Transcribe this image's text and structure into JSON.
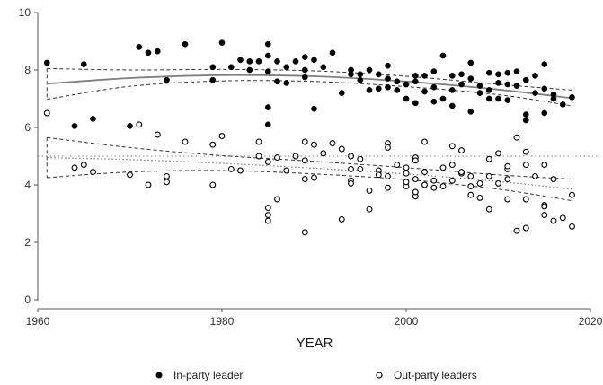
{
  "chart_data": {
    "type": "scatter",
    "title": "",
    "xlabel": "YEAR",
    "ylabel": "",
    "xlim": [
      1960,
      2020
    ],
    "ylim": [
      0,
      10
    ],
    "xticks": [
      1960,
      1980,
      2000,
      2020
    ],
    "yticks": [
      0,
      2,
      4,
      6,
      8,
      10
    ],
    "grid": false,
    "legend_position": "bottom",
    "reference_line_y": 5,
    "colors": {
      "in_party": "#000000",
      "out_party": "#000000",
      "fit": "#808080",
      "ci": "#333333",
      "reference": "#9a9a9a"
    },
    "series": [
      {
        "name": "In-party leader",
        "marker": "filled-circle",
        "points": [
          [
            1961,
            8.25
          ],
          [
            1964,
            6.05
          ],
          [
            1965,
            8.2
          ],
          [
            1966,
            6.3
          ],
          [
            1970,
            6.05
          ],
          [
            1971,
            8.8
          ],
          [
            1972,
            8.6
          ],
          [
            1973,
            8.65
          ],
          [
            1974,
            7.65
          ],
          [
            1976,
            8.9
          ],
          [
            1979,
            8.1
          ],
          [
            1979,
            7.65
          ],
          [
            1980,
            8.95
          ],
          [
            1981,
            8.1
          ],
          [
            1982,
            8.35
          ],
          [
            1983,
            8.3
          ],
          [
            1983,
            8.0
          ],
          [
            1984,
            8.3
          ],
          [
            1985,
            8.9
          ],
          [
            1985,
            8.5
          ],
          [
            1985,
            7.95
          ],
          [
            1985,
            6.7
          ],
          [
            1985,
            6.1
          ],
          [
            1986,
            8.3
          ],
          [
            1986,
            7.6
          ],
          [
            1987,
            7.55
          ],
          [
            1987,
            8.1
          ],
          [
            1988,
            8.3
          ],
          [
            1989,
            8.0
          ],
          [
            1989,
            8.45
          ],
          [
            1989,
            7.75
          ],
          [
            1990,
            6.65
          ],
          [
            1990,
            8.35
          ],
          [
            1991,
            8.1
          ],
          [
            1992,
            8.6
          ],
          [
            1993,
            7.2
          ],
          [
            1994,
            7.85
          ],
          [
            1994,
            8.0
          ],
          [
            1995,
            7.65
          ],
          [
            1995,
            7.85
          ],
          [
            1996,
            7.3
          ],
          [
            1996,
            8.0
          ],
          [
            1997,
            7.35
          ],
          [
            1997,
            7.85
          ],
          [
            1998,
            7.4
          ],
          [
            1998,
            7.7
          ],
          [
            1998,
            8.15
          ],
          [
            1999,
            7.3
          ],
          [
            1999,
            7.6
          ],
          [
            2000,
            7.0
          ],
          [
            2000,
            7.5
          ],
          [
            2001,
            6.85
          ],
          [
            2001,
            7.8
          ],
          [
            2001,
            7.6
          ],
          [
            2002,
            7.25
          ],
          [
            2002,
            7.8
          ],
          [
            2003,
            6.9
          ],
          [
            2003,
            7.4
          ],
          [
            2003,
            7.95
          ],
          [
            2004,
            8.5
          ],
          [
            2004,
            7.0
          ],
          [
            2005,
            7.8
          ],
          [
            2005,
            7.3
          ],
          [
            2005,
            6.75
          ],
          [
            2006,
            7.5
          ],
          [
            2006,
            7.85
          ],
          [
            2007,
            6.55
          ],
          [
            2007,
            7.7
          ],
          [
            2007,
            8.25
          ],
          [
            2008,
            7.2
          ],
          [
            2008,
            7.45
          ],
          [
            2009,
            7.9
          ],
          [
            2009,
            7.3
          ],
          [
            2009,
            7.0
          ],
          [
            2010,
            7.85
          ],
          [
            2010,
            7.55
          ],
          [
            2010,
            7.0
          ],
          [
            2011,
            7.9
          ],
          [
            2011,
            7.5
          ],
          [
            2011,
            6.95
          ],
          [
            2012,
            7.95
          ],
          [
            2012,
            7.45
          ],
          [
            2013,
            6.45
          ],
          [
            2013,
            6.25
          ],
          [
            2013,
            7.65
          ],
          [
            2014,
            7.2
          ],
          [
            2014,
            7.8
          ],
          [
            2015,
            7.35
          ],
          [
            2015,
            6.5
          ],
          [
            2015,
            8.2
          ],
          [
            2016,
            7.0
          ],
          [
            2016,
            7.15
          ],
          [
            2017,
            6.8
          ],
          [
            2018,
            7.05
          ]
        ]
      },
      {
        "name": "Out-party leaders",
        "marker": "hollow-circle",
        "points": [
          [
            1961,
            6.5
          ],
          [
            1964,
            4.6
          ],
          [
            1965,
            4.7
          ],
          [
            1966,
            4.45
          ],
          [
            1970,
            4.35
          ],
          [
            1971,
            6.1
          ],
          [
            1972,
            4.0
          ],
          [
            1973,
            5.75
          ],
          [
            1974,
            4.1
          ],
          [
            1974,
            4.3
          ],
          [
            1976,
            5.5
          ],
          [
            1979,
            5.4
          ],
          [
            1979,
            4.0
          ],
          [
            1980,
            5.7
          ],
          [
            1981,
            4.55
          ],
          [
            1982,
            4.5
          ],
          [
            1984,
            5.5
          ],
          [
            1984,
            5.0
          ],
          [
            1985,
            4.8
          ],
          [
            1985,
            3.2
          ],
          [
            1985,
            2.95
          ],
          [
            1985,
            2.75
          ],
          [
            1986,
            3.5
          ],
          [
            1986,
            4.95
          ],
          [
            1987,
            4.5
          ],
          [
            1988,
            5.0
          ],
          [
            1989,
            4.85
          ],
          [
            1989,
            4.2
          ],
          [
            1989,
            5.5
          ],
          [
            1989,
            2.35
          ],
          [
            1990,
            4.25
          ],
          [
            1990,
            5.4
          ],
          [
            1991,
            5.1
          ],
          [
            1992,
            5.45
          ],
          [
            1993,
            2.8
          ],
          [
            1993,
            5.25
          ],
          [
            1994,
            5.0
          ],
          [
            1994,
            4.55
          ],
          [
            1994,
            4.15
          ],
          [
            1994,
            4.05
          ],
          [
            1995,
            4.9
          ],
          [
            1995,
            4.55
          ],
          [
            1996,
            3.15
          ],
          [
            1996,
            3.8
          ],
          [
            1997,
            4.5
          ],
          [
            1997,
            4.35
          ],
          [
            1998,
            5.45
          ],
          [
            1998,
            5.3
          ],
          [
            1998,
            4.3
          ],
          [
            1998,
            3.9
          ],
          [
            1999,
            4.7
          ],
          [
            2000,
            3.95
          ],
          [
            2000,
            4.6
          ],
          [
            2000,
            4.4
          ],
          [
            2000,
            4.1
          ],
          [
            2001,
            4.95
          ],
          [
            2001,
            4.85
          ],
          [
            2001,
            3.6
          ],
          [
            2001,
            3.75
          ],
          [
            2001,
            4.2
          ],
          [
            2002,
            5.5
          ],
          [
            2002,
            4.45
          ],
          [
            2002,
            4.0
          ],
          [
            2003,
            4.15
          ],
          [
            2003,
            3.9
          ],
          [
            2004,
            4.6
          ],
          [
            2004,
            3.95
          ],
          [
            2005,
            5.35
          ],
          [
            2005,
            4.7
          ],
          [
            2005,
            4.15
          ],
          [
            2006,
            5.2
          ],
          [
            2006,
            4.4
          ],
          [
            2006,
            4.45
          ],
          [
            2007,
            3.65
          ],
          [
            2007,
            4.3
          ],
          [
            2007,
            3.95
          ],
          [
            2008,
            3.55
          ],
          [
            2008,
            4.05
          ],
          [
            2009,
            3.15
          ],
          [
            2009,
            4.9
          ],
          [
            2009,
            4.3
          ],
          [
            2010,
            5.1
          ],
          [
            2010,
            4.05
          ],
          [
            2011,
            4.2
          ],
          [
            2011,
            3.5
          ],
          [
            2011,
            4.55
          ],
          [
            2011,
            4.65
          ],
          [
            2012,
            5.65
          ],
          [
            2012,
            2.4
          ],
          [
            2013,
            4.7
          ],
          [
            2013,
            5.15
          ],
          [
            2013,
            3.5
          ],
          [
            2013,
            2.5
          ],
          [
            2014,
            4.3
          ],
          [
            2015,
            3.3
          ],
          [
            2015,
            3.25
          ],
          [
            2015,
            4.7
          ],
          [
            2015,
            2.95
          ],
          [
            2016,
            4.2
          ],
          [
            2016,
            2.75
          ],
          [
            2017,
            2.85
          ],
          [
            2018,
            2.55
          ],
          [
            2018,
            3.65
          ]
        ]
      }
    ],
    "fit_lines": [
      {
        "group": "in-party",
        "style": "solid",
        "fit": [
          [
            1961,
            7.52
          ],
          [
            1970,
            7.72
          ],
          [
            1980,
            7.82
          ],
          [
            1990,
            7.78
          ],
          [
            2000,
            7.6
          ],
          [
            2010,
            7.32
          ],
          [
            2018,
            7.02
          ]
        ],
        "ci_upper": [
          [
            1961,
            8.05
          ],
          [
            1970,
            8.0
          ],
          [
            1980,
            8.02
          ],
          [
            1990,
            7.97
          ],
          [
            2000,
            7.78
          ],
          [
            2010,
            7.5
          ],
          [
            2018,
            7.3
          ]
        ],
        "ci_lower": [
          [
            1961,
            6.98
          ],
          [
            1970,
            7.43
          ],
          [
            1980,
            7.62
          ],
          [
            1990,
            7.6
          ],
          [
            2000,
            7.42
          ],
          [
            2010,
            7.14
          ],
          [
            2018,
            6.75
          ]
        ]
      },
      {
        "group": "out-party",
        "style": "dotted",
        "fit": [
          [
            1961,
            4.95
          ],
          [
            1970,
            4.88
          ],
          [
            1980,
            4.75
          ],
          [
            1990,
            4.58
          ],
          [
            2000,
            4.38
          ],
          [
            2010,
            4.12
          ],
          [
            2018,
            3.85
          ]
        ],
        "ci_upper": [
          [
            1961,
            5.65
          ],
          [
            1970,
            5.3
          ],
          [
            1980,
            5.02
          ],
          [
            1990,
            4.82
          ],
          [
            2000,
            4.6
          ],
          [
            2010,
            4.35
          ],
          [
            2018,
            4.2
          ]
        ],
        "ci_lower": [
          [
            1961,
            4.25
          ],
          [
            1970,
            4.45
          ],
          [
            1980,
            4.5
          ],
          [
            1990,
            4.38
          ],
          [
            2000,
            4.18
          ],
          [
            2010,
            3.85
          ],
          [
            2018,
            3.45
          ]
        ]
      }
    ]
  },
  "legend": [
    {
      "label": "In-party leader",
      "marker": "filled-circle"
    },
    {
      "label": "Out-party leaders",
      "marker": "hollow-circle"
    }
  ]
}
